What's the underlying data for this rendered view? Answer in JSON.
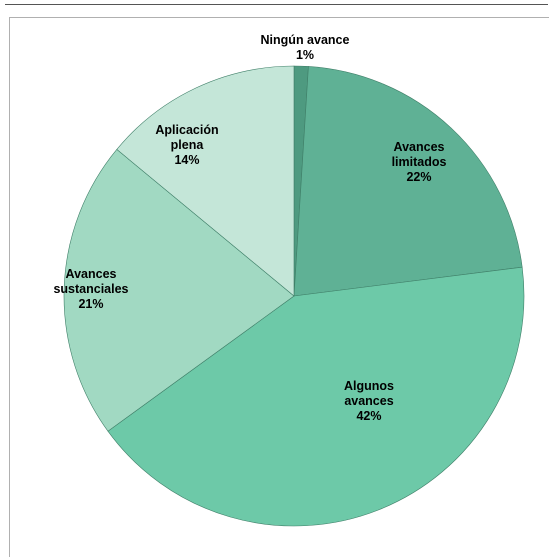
{
  "chart_data": {
    "type": "pie",
    "title": "",
    "slices": [
      {
        "label": [
          "Ningún avance"
        ],
        "pct_label": "1%",
        "value": 1,
        "color": "#4e9a80"
      },
      {
        "label": [
          "Avances",
          "limitados"
        ],
        "pct_label": "22%",
        "value": 22,
        "color": "#5fb195"
      },
      {
        "label": [
          "Algunos",
          "avances"
        ],
        "pct_label": "42%",
        "value": 42,
        "color": "#6dc9a8"
      },
      {
        "label": [
          "Avances",
          "sustanciales"
        ],
        "pct_label": "21%",
        "value": 21,
        "color": "#a1d9c2"
      },
      {
        "label": [
          "Aplicación",
          "plena"
        ],
        "pct_label": "14%",
        "value": 14,
        "color": "#c4e6d8"
      }
    ],
    "start": "12 o'clock",
    "direction": "clockwise",
    "legend": "none"
  }
}
